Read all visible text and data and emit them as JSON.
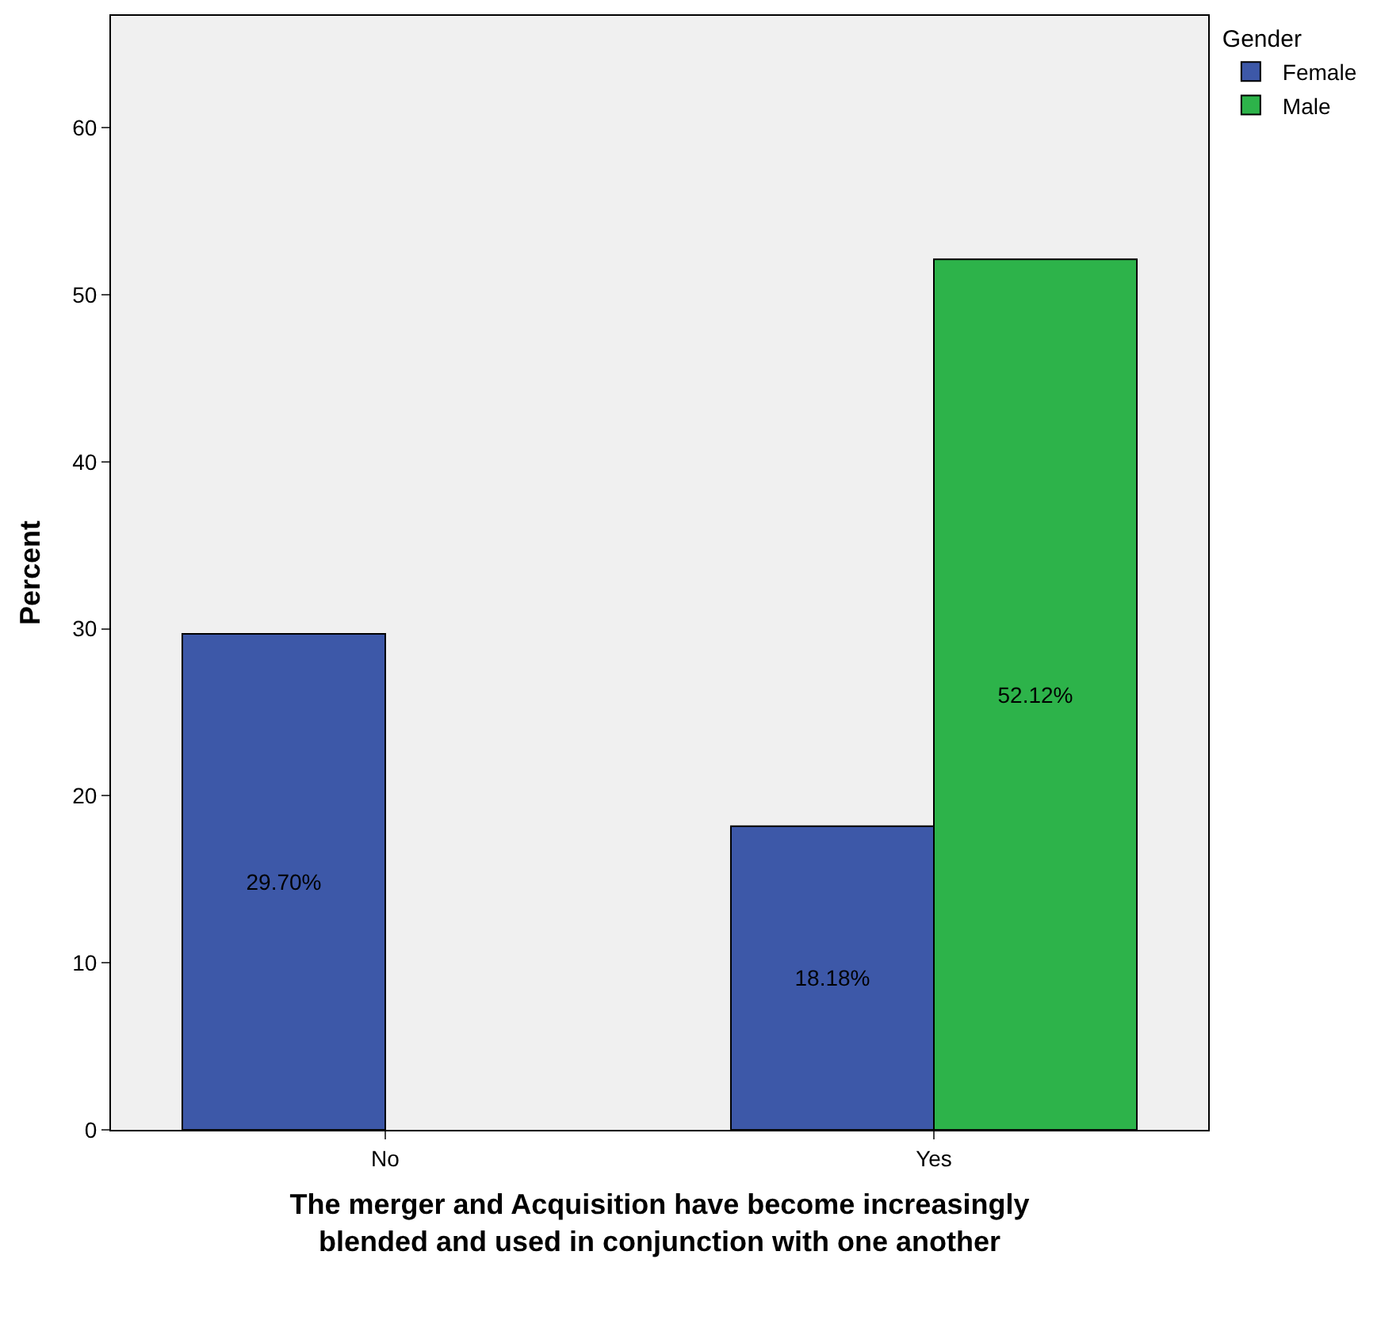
{
  "chart_data": {
    "type": "bar",
    "categories": [
      "No",
      "Yes"
    ],
    "series": [
      {
        "name": "Female",
        "color": "#3d58a8",
        "values": [
          29.7,
          18.18
        ],
        "value_labels": [
          "29.70%",
          "18.18%"
        ]
      },
      {
        "name": "Male",
        "color": "#2db34a",
        "values": [
          null,
          52.12
        ],
        "value_labels": [
          null,
          "52.12%"
        ]
      }
    ],
    "xlabel": "The merger and Acquisition have become increasingly blended and used in conjunction with one another",
    "ylabel": "Percent",
    "legend_title": "Gender",
    "legend": "top right",
    "ylim": [
      0,
      66.7
    ],
    "yticks": [
      0,
      10,
      20,
      30,
      40,
      50,
      60
    ],
    "grid": false
  }
}
